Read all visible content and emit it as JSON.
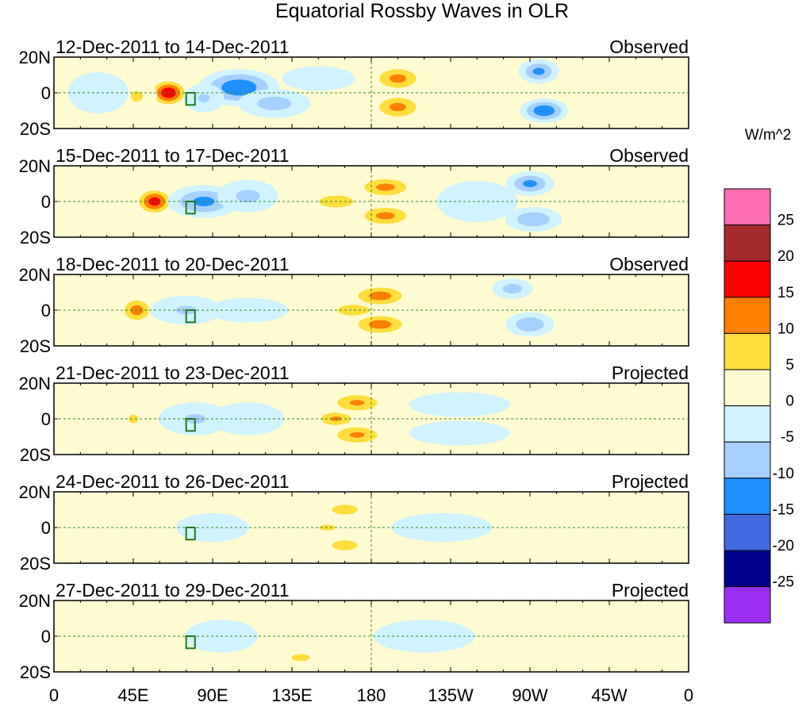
{
  "chart_data": {
    "type": "heatmap",
    "title": "Equatorial Rossby Waves in OLR",
    "variable": "OLR anomaly",
    "units": "W/m^2",
    "x_ticks": [
      "0",
      "45E",
      "90E",
      "135E",
      "180",
      "135W",
      "90W",
      "45W",
      "0"
    ],
    "x_tick_values": [
      0,
      45,
      90,
      135,
      180,
      225,
      270,
      315,
      360
    ],
    "xlim": [
      0,
      360
    ],
    "y_ticks": [
      "20N",
      "0",
      "20S"
    ],
    "y_tick_values": [
      20,
      0,
      -20
    ],
    "ylim": [
      -20,
      20
    ],
    "reference_lines": [
      "equator (0)",
      "180"
    ],
    "region_box": {
      "lon": [
        75,
        80
      ],
      "lat": [
        -5,
        0
      ]
    },
    "colorbar": {
      "label": "W/m^2",
      "tick_labels": [
        "25",
        "20",
        "15",
        "10",
        "5",
        "0",
        "-5",
        "-10",
        "-15",
        "-20",
        "-25"
      ],
      "levels": [
        -25,
        -20,
        -15,
        -10,
        -5,
        0,
        5,
        10,
        15,
        20,
        25
      ],
      "colors": [
        "#9a2ef5",
        "#00008c",
        "#4169e1",
        "#1e90ff",
        "#a6d0ff",
        "#cff3ff",
        "#fffbd0",
        "#ffdd3a",
        "#ff7f00",
        "#ff0000",
        "#a52a2a",
        "#ff6eb4"
      ]
    },
    "panels": [
      {
        "date_range": "12-Dec-2011 to 14-Dec-2011",
        "type": "Observed",
        "anomalies": [
          {
            "lon": 65,
            "lat": 0,
            "value": 20,
            "rx": 10,
            "ry": 7
          },
          {
            "lon": 47,
            "lat": -2,
            "value": 6,
            "rx": 10,
            "ry": 9
          },
          {
            "lon": 105,
            "lat": 3,
            "value": -15,
            "rx": 20,
            "ry": 9
          },
          {
            "lon": 85,
            "lat": -3,
            "value": -6,
            "rx": 10,
            "ry": 7
          },
          {
            "lon": 125,
            "lat": -6,
            "value": -8,
            "rx": 18,
            "ry": 7
          },
          {
            "lon": 195,
            "lat": 8,
            "value": 12,
            "rx": 14,
            "ry": 7
          },
          {
            "lon": 195,
            "lat": -8,
            "value": 12,
            "rx": 14,
            "ry": 7
          },
          {
            "lon": 230,
            "lat": 5,
            "value": 4,
            "rx": 18,
            "ry": 7
          },
          {
            "lon": 275,
            "lat": 12,
            "value": -12,
            "rx": 10,
            "ry": 6
          },
          {
            "lon": 278,
            "lat": -10,
            "value": -15,
            "rx": 12,
            "ry": 6
          },
          {
            "lon": 150,
            "lat": 8,
            "value": -5,
            "rx": 18,
            "ry": 6
          },
          {
            "lon": 330,
            "lat": 0,
            "value": 3,
            "rx": 30,
            "ry": 10
          },
          {
            "lon": 25,
            "lat": 0,
            "value": -3,
            "rx": 15,
            "ry": 10
          }
        ]
      },
      {
        "date_range": "15-Dec-2011 to 17-Dec-2011",
        "type": "Observed",
        "anomalies": [
          {
            "lon": 57,
            "lat": 0,
            "value": 18,
            "rx": 10,
            "ry": 7
          },
          {
            "lon": 85,
            "lat": 0,
            "value": -12,
            "rx": 18,
            "ry": 8
          },
          {
            "lon": 110,
            "lat": 3,
            "value": -7,
            "rx": 15,
            "ry": 8
          },
          {
            "lon": 160,
            "lat": 0,
            "value": 8,
            "rx": 18,
            "ry": 6
          },
          {
            "lon": 188,
            "lat": 8,
            "value": 12,
            "rx": 16,
            "ry": 6
          },
          {
            "lon": 188,
            "lat": -8,
            "value": 12,
            "rx": 16,
            "ry": 6
          },
          {
            "lon": 270,
            "lat": 10,
            "value": -12,
            "rx": 12,
            "ry": 6
          },
          {
            "lon": 272,
            "lat": -10,
            "value": -10,
            "rx": 14,
            "ry": 6
          },
          {
            "lon": 240,
            "lat": 0,
            "value": -4,
            "rx": 20,
            "ry": 10
          },
          {
            "lon": 320,
            "lat": 5,
            "value": 3,
            "rx": 25,
            "ry": 10
          }
        ]
      },
      {
        "date_range": "18-Dec-2011 to 20-Dec-2011",
        "type": "Observed",
        "anomalies": [
          {
            "lon": 47,
            "lat": 0,
            "value": 13,
            "rx": 9,
            "ry": 7
          },
          {
            "lon": 75,
            "lat": 0,
            "value": -6,
            "rx": 18,
            "ry": 7
          },
          {
            "lon": 110,
            "lat": 0,
            "value": -4,
            "rx": 20,
            "ry": 6
          },
          {
            "lon": 170,
            "lat": 0,
            "value": 9,
            "rx": 15,
            "ry": 5
          },
          {
            "lon": 185,
            "lat": 8,
            "value": 13,
            "rx": 16,
            "ry": 6
          },
          {
            "lon": 185,
            "lat": -8,
            "value": 13,
            "rx": 16,
            "ry": 6
          },
          {
            "lon": 270,
            "lat": -8,
            "value": -10,
            "rx": 12,
            "ry": 6
          },
          {
            "lon": 260,
            "lat": 12,
            "value": -8,
            "rx": 10,
            "ry": 5
          },
          {
            "lon": 320,
            "lat": 0,
            "value": 4,
            "rx": 25,
            "ry": 9
          }
        ]
      },
      {
        "date_range": "21-Dec-2011 to 23-Dec-2011",
        "type": "Projected",
        "anomalies": [
          {
            "lon": 45,
            "lat": 0,
            "value": 6,
            "rx": 8,
            "ry": 7
          },
          {
            "lon": 80,
            "lat": 0,
            "value": -6,
            "rx": 18,
            "ry": 8
          },
          {
            "lon": 110,
            "lat": 0,
            "value": -4,
            "rx": 18,
            "ry": 8
          },
          {
            "lon": 160,
            "lat": 0,
            "value": 11,
            "rx": 12,
            "ry": 5
          },
          {
            "lon": 172,
            "lat": 9,
            "value": 11,
            "rx": 16,
            "ry": 6
          },
          {
            "lon": 172,
            "lat": -9,
            "value": 11,
            "rx": 16,
            "ry": 6
          },
          {
            "lon": 230,
            "lat": 8,
            "value": -4,
            "rx": 25,
            "ry": 6
          },
          {
            "lon": 230,
            "lat": -8,
            "value": -4,
            "rx": 25,
            "ry": 6
          },
          {
            "lon": 300,
            "lat": 0,
            "value": 3,
            "rx": 30,
            "ry": 8
          }
        ]
      },
      {
        "date_range": "24-Dec-2011 to 26-Dec-2011",
        "type": "Projected",
        "anomalies": [
          {
            "lon": 40,
            "lat": 0,
            "value": 2,
            "rx": 15,
            "ry": 8
          },
          {
            "lon": 90,
            "lat": 0,
            "value": -4,
            "rx": 18,
            "ry": 7
          },
          {
            "lon": 155,
            "lat": 0,
            "value": 6,
            "rx": 14,
            "ry": 5
          },
          {
            "lon": 165,
            "lat": 10,
            "value": 7,
            "rx": 16,
            "ry": 6
          },
          {
            "lon": 165,
            "lat": -10,
            "value": 7,
            "rx": 16,
            "ry": 6
          },
          {
            "lon": 220,
            "lat": 0,
            "value": -4,
            "rx": 25,
            "ry": 7
          },
          {
            "lon": 300,
            "lat": 0,
            "value": 3,
            "rx": 25,
            "ry": 8
          }
        ]
      },
      {
        "date_range": "27-Dec-2011 to 29-Dec-2011",
        "type": "Projected",
        "anomalies": [
          {
            "lon": 40,
            "lat": -5,
            "value": 3,
            "rx": 15,
            "ry": 8
          },
          {
            "lon": 95,
            "lat": 0,
            "value": -3,
            "rx": 18,
            "ry": 8
          },
          {
            "lon": 135,
            "lat": 12,
            "value": 4,
            "rx": 16,
            "ry": 6
          },
          {
            "lon": 140,
            "lat": -12,
            "value": 6,
            "rx": 16,
            "ry": 6
          },
          {
            "lon": 210,
            "lat": 0,
            "value": -3,
            "rx": 25,
            "ry": 8
          },
          {
            "lon": 300,
            "lat": 0,
            "value": 2,
            "rx": 30,
            "ry": 10
          }
        ]
      }
    ]
  }
}
